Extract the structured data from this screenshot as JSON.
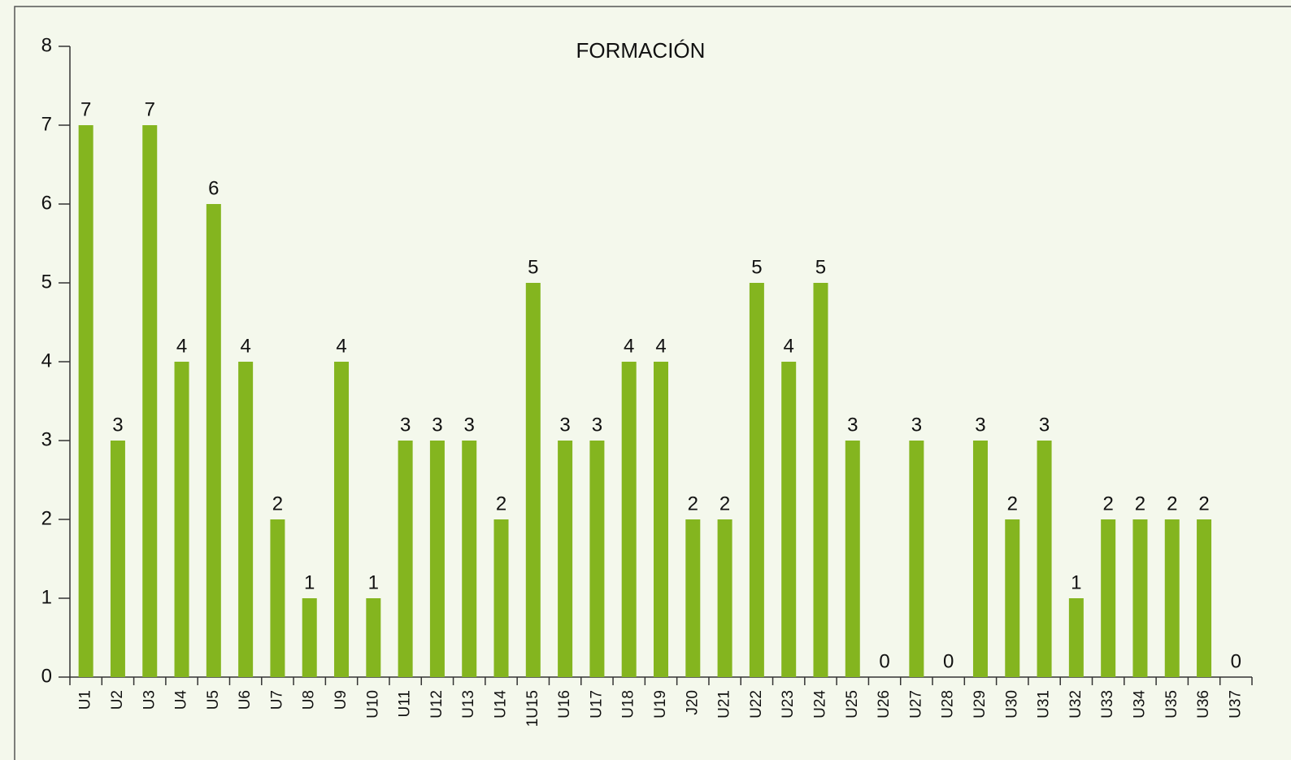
{
  "chart_data": {
    "type": "bar",
    "title": "FORMACIÓN",
    "categories": [
      "U1",
      "U2",
      "U3",
      "U4",
      "U5",
      "U6",
      "U7",
      "U8",
      "U9",
      "U10",
      "U11",
      "U12",
      "U13",
      "U14",
      "1U15",
      "U16",
      "U17",
      "U18",
      "U19",
      "J20",
      "U21",
      "U22",
      "U23",
      "U24",
      "U25",
      "U26",
      "U27",
      "U28",
      "U29",
      "U30",
      "U31",
      "U32",
      "U33",
      "U34",
      "U35",
      "U36",
      "U37"
    ],
    "values": [
      7,
      3,
      7,
      4,
      6,
      4,
      2,
      1,
      4,
      1,
      3,
      3,
      3,
      2,
      5,
      3,
      3,
      4,
      4,
      2,
      2,
      5,
      4,
      5,
      3,
      0,
      3,
      0,
      3,
      2,
      3,
      1,
      2,
      2,
      2,
      2,
      0
    ],
    "color": "#84b51f",
    "ylim": [
      0,
      8
    ],
    "yticks": [
      0,
      1,
      2,
      3,
      4,
      5,
      6,
      7,
      8
    ],
    "grid": false
  }
}
